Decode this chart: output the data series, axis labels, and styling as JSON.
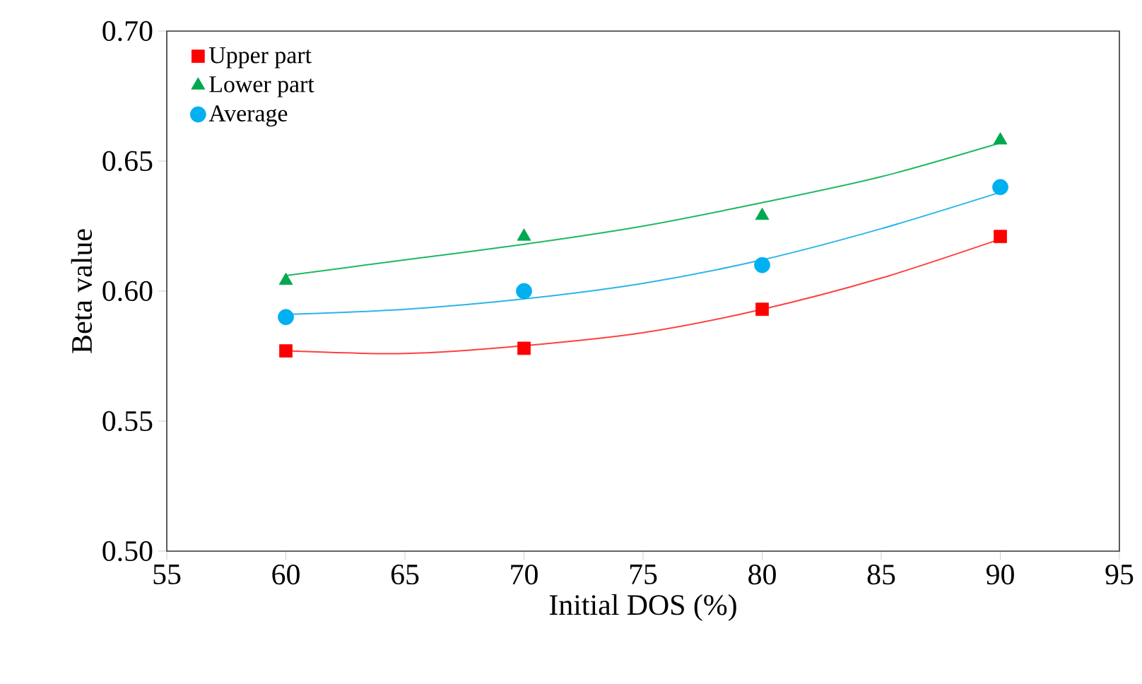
{
  "chart_data": {
    "type": "scatter",
    "xlabel": "Initial DOS (%)",
    "ylabel": "Beta value",
    "x": [
      60,
      70,
      80,
      90
    ],
    "xlim": [
      55,
      95
    ],
    "xticks": [
      55,
      60,
      65,
      70,
      75,
      80,
      85,
      90,
      95
    ],
    "ylim": [
      0.5,
      0.7
    ],
    "yticks": [
      {
        "value": 0.5,
        "label": "0.50"
      },
      {
        "value": 0.55,
        "label": "0.55"
      },
      {
        "value": 0.6,
        "label": "0.60"
      },
      {
        "value": 0.65,
        "label": "0.65"
      },
      {
        "value": 0.7,
        "label": "0.70"
      }
    ],
    "legend": "top left",
    "series": [
      {
        "name": "Upper part",
        "color": "#ff0000",
        "marker": "square",
        "values": [
          0.577,
          0.578,
          0.593,
          0.621
        ]
      },
      {
        "name": "Lower part",
        "color": "#00a84f",
        "marker": "triangle",
        "values": [
          0.604,
          0.621,
          0.629,
          0.658
        ]
      },
      {
        "name": "Average",
        "color": "#00b0f0",
        "marker": "circle",
        "values": [
          0.59,
          0.6,
          0.61,
          0.64
        ]
      },
      {
        "type": "line",
        "color": "#ff4040",
        "marker": "none",
        "x": [
          60,
          65,
          70,
          75,
          80,
          85,
          90
        ],
        "values": [
          0.577,
          0.576,
          0.579,
          0.584,
          0.593,
          0.605,
          0.62
        ]
      },
      {
        "type": "line",
        "color": "#2bb5e8",
        "marker": "none",
        "x": [
          60,
          65,
          70,
          75,
          80,
          85,
          90
        ],
        "values": [
          0.591,
          0.593,
          0.597,
          0.603,
          0.612,
          0.624,
          0.638
        ]
      },
      {
        "type": "line",
        "color": "#1fb860",
        "marker": "none",
        "x": [
          60,
          65,
          70,
          75,
          80,
          85,
          90
        ],
        "values": [
          0.606,
          0.612,
          0.618,
          0.625,
          0.634,
          0.644,
          0.657
        ]
      }
    ]
  }
}
